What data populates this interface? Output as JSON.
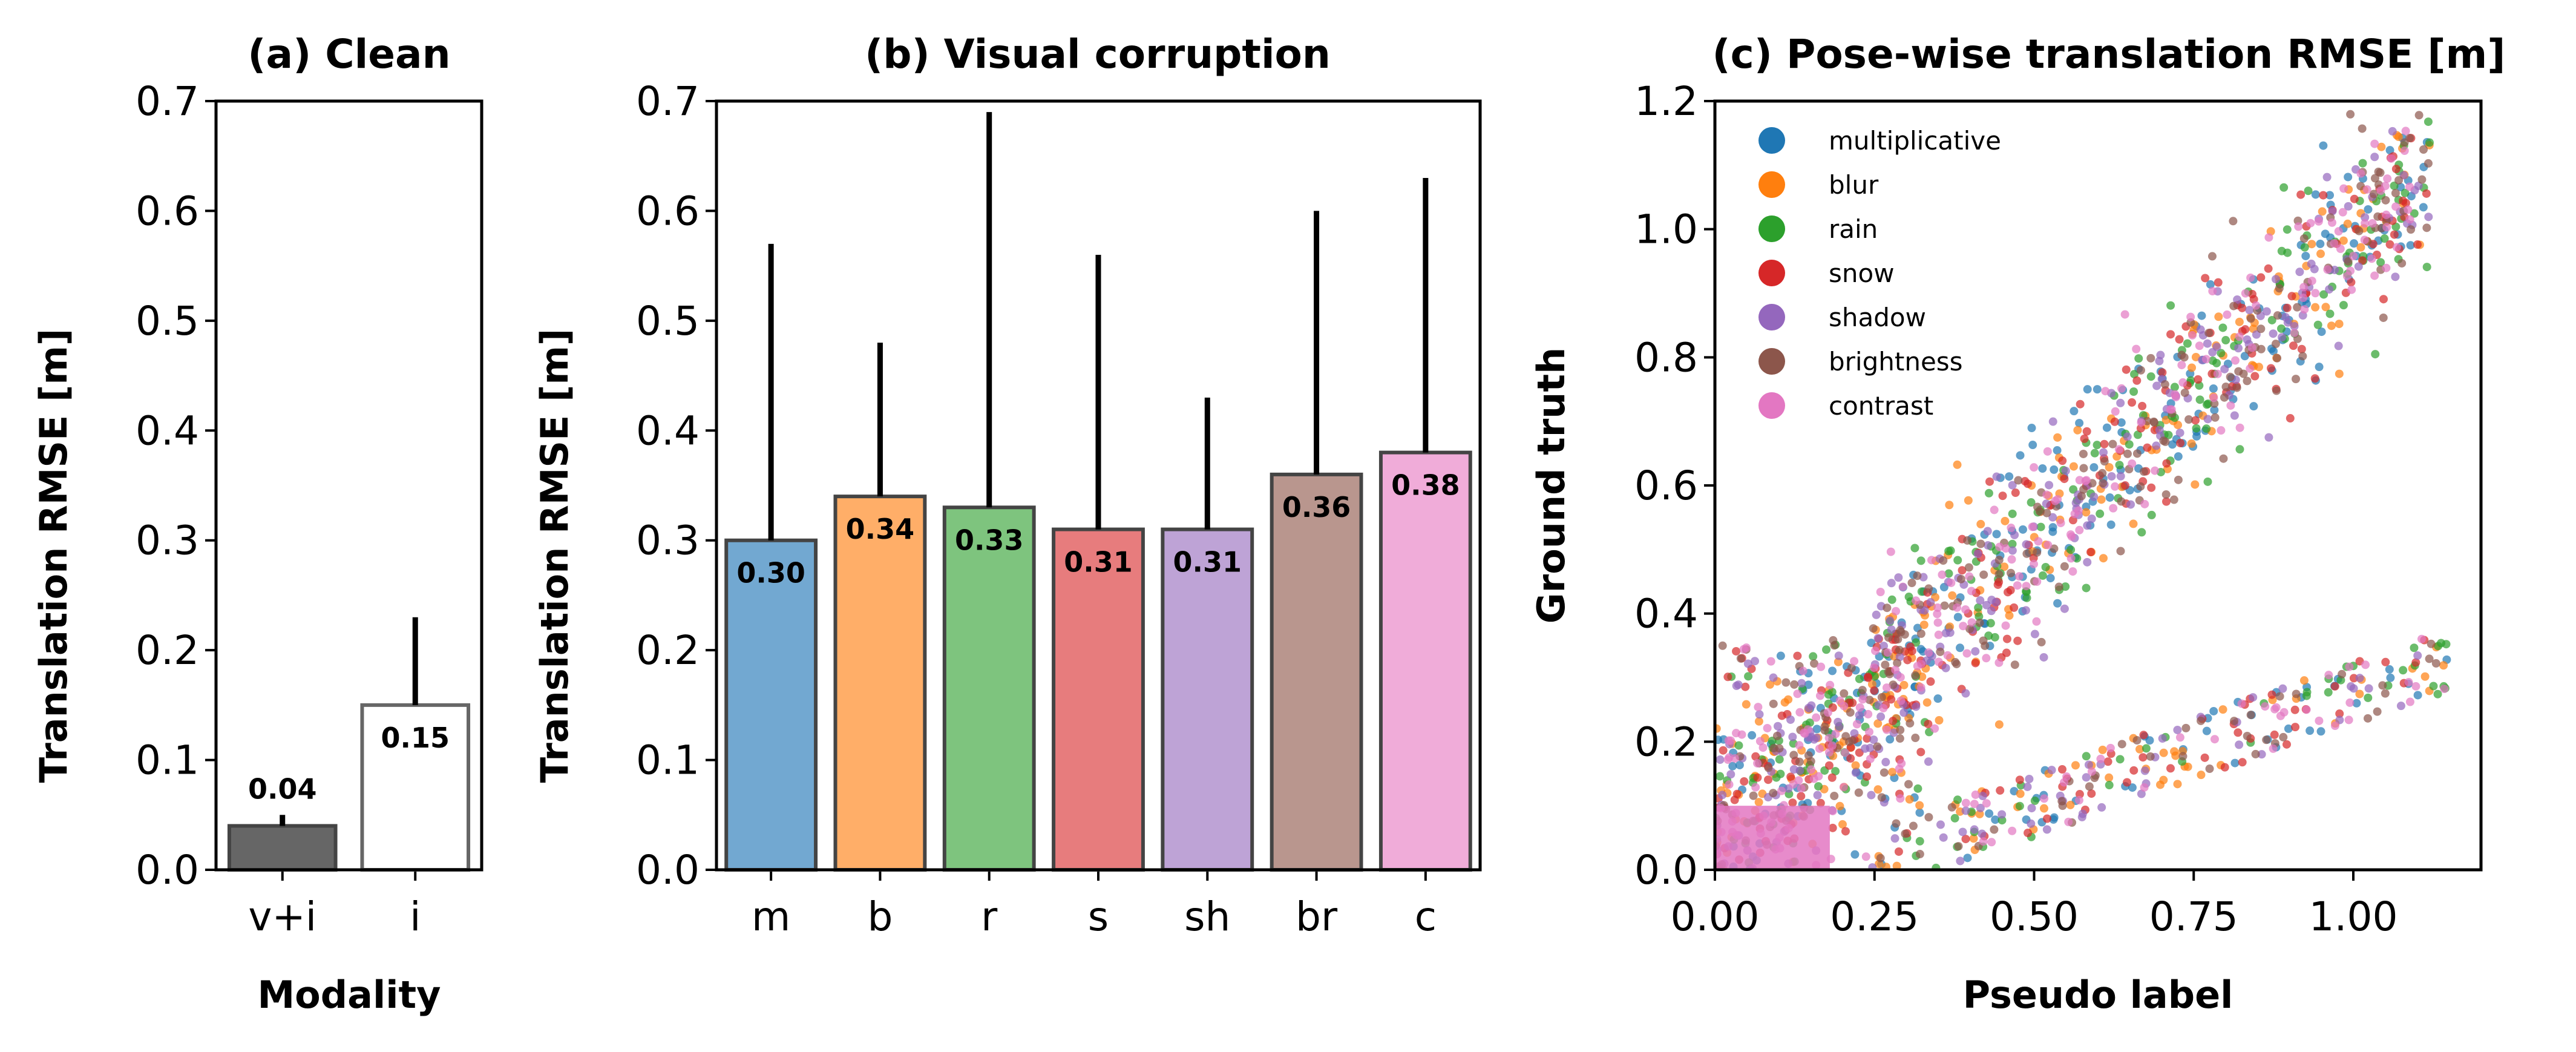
{
  "chart_data": [
    {
      "type": "bar",
      "title": "(a) Clean",
      "xlabel": "Modality",
      "ylabel": "Translation RMSE [m]",
      "categories": [
        "v+i",
        "i"
      ],
      "values": [
        0.04,
        0.15
      ],
      "value_labels": [
        "0.04",
        "0.15"
      ],
      "error_upper": [
        0.05,
        0.23
      ],
      "colors": [
        "#666666",
        "#ffffff"
      ],
      "edge_colors": [
        "#444444",
        "#666666"
      ],
      "ylim": [
        0,
        0.7
      ],
      "yticks": [
        "0.0",
        "0.1",
        "0.2",
        "0.3",
        "0.4",
        "0.5",
        "0.6",
        "0.7"
      ]
    },
    {
      "type": "bar",
      "title": "(b) Visual corruption",
      "xlabel": "",
      "ylabel": "Translation RMSE [m]",
      "categories": [
        "m",
        "b",
        "r",
        "s",
        "sh",
        "br",
        "c"
      ],
      "values": [
        0.3,
        0.34,
        0.33,
        0.31,
        0.31,
        0.36,
        0.38
      ],
      "value_labels": [
        "0.30",
        "0.34",
        "0.33",
        "0.31",
        "0.31",
        "0.36",
        "0.38"
      ],
      "error_upper": [
        0.57,
        0.48,
        0.69,
        0.56,
        0.43,
        0.6,
        0.63
      ],
      "colors": [
        "#72a8d1",
        "#ffae68",
        "#7ec47e",
        "#e77c7d",
        "#bea3d6",
        "#b9968e",
        "#f0acd9"
      ],
      "edge_colors": [
        "#444444",
        "#444444",
        "#444444",
        "#444444",
        "#444444",
        "#444444",
        "#444444"
      ],
      "ylim": [
        0,
        0.7
      ],
      "yticks": [
        "0.0",
        "0.1",
        "0.2",
        "0.3",
        "0.4",
        "0.5",
        "0.6",
        "0.7"
      ]
    },
    {
      "type": "scatter",
      "title": "(c) Pose-wise translation RMSE [m]",
      "xlabel": "Pseudo label",
      "ylabel": "Ground truth",
      "xlim": [
        0,
        1.2
      ],
      "ylim": [
        0,
        1.2
      ],
      "xticks": [
        "0.00",
        "0.25",
        "0.50",
        "0.75",
        "1.00"
      ],
      "yticks": [
        "0.0",
        "0.2",
        "0.4",
        "0.6",
        "0.8",
        "1.0",
        "1.2"
      ],
      "legend_position": "top-left",
      "series": [
        {
          "name": "multiplicative",
          "color": "#1f77b4"
        },
        {
          "name": "blur",
          "color": "#ff7f0e"
        },
        {
          "name": "rain",
          "color": "#2ca02c"
        },
        {
          "name": "snow",
          "color": "#d62728"
        },
        {
          "name": "shadow",
          "color": "#9467bd"
        },
        {
          "name": "brightness",
          "color": "#8c564b"
        },
        {
          "name": "contrast",
          "color": "#e377c2"
        }
      ]
    }
  ]
}
